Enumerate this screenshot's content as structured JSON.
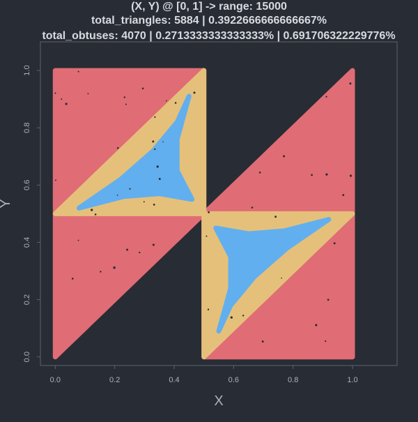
{
  "chart_data": {
    "type": "scatter",
    "title_lines": [
      "(X, Y) @ [0, 1] -> range: 15000",
      "total_triangles: 5884 | 0.3922666666666667%",
      "total_obtuses: 4070 | 0.2713333333333333% | 0.691706322229776%"
    ],
    "xlabel": "X",
    "ylabel": "Y",
    "xlim": [
      -0.05,
      1.15
    ],
    "ylim": [
      -0.03,
      1.1
    ],
    "xticks": [
      0.0,
      0.2,
      0.4,
      0.6,
      0.8,
      1.0
    ],
    "yticks": [
      0.0,
      0.2,
      0.4,
      0.6,
      0.8,
      1.0
    ],
    "xtick_labels": [
      "0.0",
      "0.2",
      "0.4",
      "0.6",
      "0.8",
      "1.0"
    ],
    "ytick_labels": [
      "0.0",
      "0.2",
      "0.4",
      "0.6",
      "0.8",
      "1.0"
    ],
    "grid": false,
    "legend": "none",
    "colors": {
      "background": "#282c34",
      "frame": "#5c6370",
      "text": "#abb2bf",
      "title": "#d7dae0",
      "red": "#e06c75",
      "yellow": "#e5c07b",
      "blue": "#61afef"
    },
    "series": [
      {
        "color_key": "red",
        "regions": [
          {
            "shape": "polygon",
            "points": [
              [
                0.0,
                0.0
              ],
              [
                0.0,
                1.0
              ],
              [
                0.5,
                1.0
              ],
              [
                0.5,
                0.5
              ]
            ]
          },
          {
            "shape": "polygon",
            "points": [
              [
                0.5,
                0.5
              ],
              [
                1.0,
                1.0
              ],
              [
                1.0,
                0.0
              ],
              [
                0.5,
                0.0
              ]
            ]
          }
        ]
      },
      {
        "color_key": "yellow",
        "regions": [
          {
            "shape": "polygon",
            "points": [
              [
                0.5,
                1.0
              ],
              [
                0.5,
                0.5
              ],
              [
                0.0,
                0.5
              ]
            ]
          },
          {
            "shape": "polygon",
            "points": [
              [
                0.5,
                0.0
              ],
              [
                0.5,
                0.5
              ],
              [
                1.0,
                0.5
              ]
            ]
          }
        ]
      },
      {
        "color_key": "blue",
        "regions": [
          {
            "shape": "polygon",
            "points": [
              [
                0.45,
                0.91
              ],
              [
                0.41,
                0.76
              ],
              [
                0.41,
                0.65
              ],
              [
                0.46,
                0.55
              ],
              [
                0.35,
                0.57
              ],
              [
                0.23,
                0.56
              ],
              [
                0.08,
                0.52
              ],
              [
                0.22,
                0.62
              ],
              [
                0.33,
                0.72
              ],
              [
                0.41,
                0.82
              ]
            ]
          },
          {
            "shape": "polygon",
            "points": [
              [
                0.55,
                0.09
              ],
              [
                0.59,
                0.24
              ],
              [
                0.59,
                0.35
              ],
              [
                0.54,
                0.45
              ],
              [
                0.65,
                0.43
              ],
              [
                0.77,
                0.44
              ],
              [
                0.92,
                0.48
              ],
              [
                0.78,
                0.38
              ],
              [
                0.67,
                0.28
              ],
              [
                0.59,
                0.18
              ]
            ]
          }
        ]
      }
    ]
  }
}
